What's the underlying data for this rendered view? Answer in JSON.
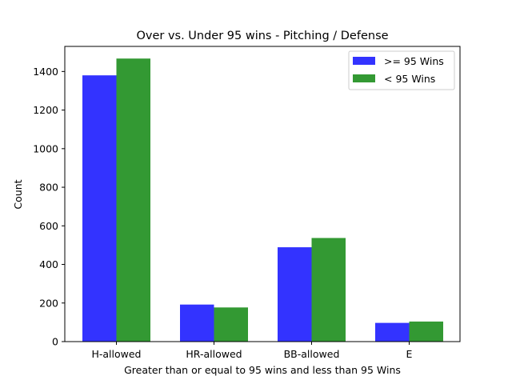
{
  "chart_data": {
    "type": "bar",
    "title": "Over vs. Under 95 wins  - Pitching / Defense",
    "xlabel": "Greater than or equal to 95 wins and less than 95 Wins",
    "ylabel": "Count",
    "categories": [
      "H-allowed",
      "HR-allowed",
      "BB-allowed",
      "E"
    ],
    "series": [
      {
        "name": ">= 95 Wins",
        "values": [
          1380,
          192,
          489,
          97
        ],
        "color": "#3333ff"
      },
      {
        "name": "< 95 Wins",
        "values": [
          1467,
          177,
          537,
          104
        ],
        "color": "#339933"
      }
    ],
    "ylim": [
      0,
      1530
    ],
    "yticks": [
      0,
      200,
      400,
      600,
      800,
      1000,
      1200,
      1400
    ],
    "legend_position": "top-right",
    "grid": false
  }
}
